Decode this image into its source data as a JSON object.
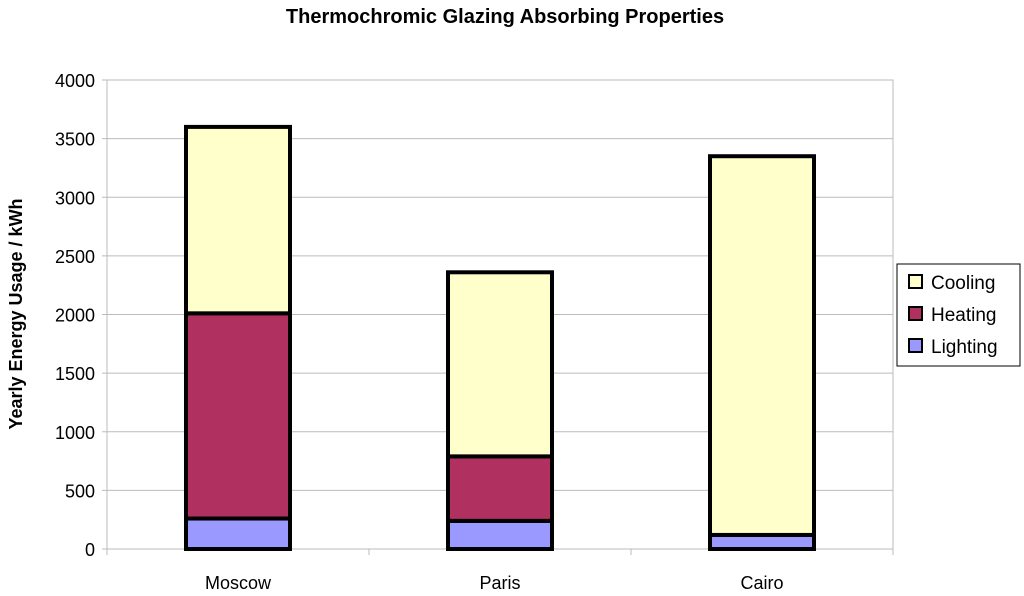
{
  "chart_data": {
    "type": "bar",
    "stacked": true,
    "title": "Thermochromic Glazing Absorbing Properties",
    "xlabel": "",
    "ylabel": "Yearly Energy Usage / kWh",
    "ylim": [
      0,
      4000
    ],
    "yticks": [
      0,
      500,
      1000,
      1500,
      2000,
      2500,
      3000,
      3500,
      4000
    ],
    "grid": true,
    "legend": "right",
    "categories": [
      "Moscow",
      "Paris",
      "Cairo"
    ],
    "series": [
      {
        "name": "Lighting",
        "color": "#9999ff",
        "values": [
          260,
          240,
          120
        ]
      },
      {
        "name": "Heating",
        "color": "#b03060",
        "values": [
          1750,
          550,
          0
        ]
      },
      {
        "name": "Cooling",
        "color": "#ffffcc",
        "values": [
          1590,
          1570,
          3230
        ]
      }
    ],
    "legend_order": [
      "Cooling",
      "Heating",
      "Lighting"
    ]
  }
}
